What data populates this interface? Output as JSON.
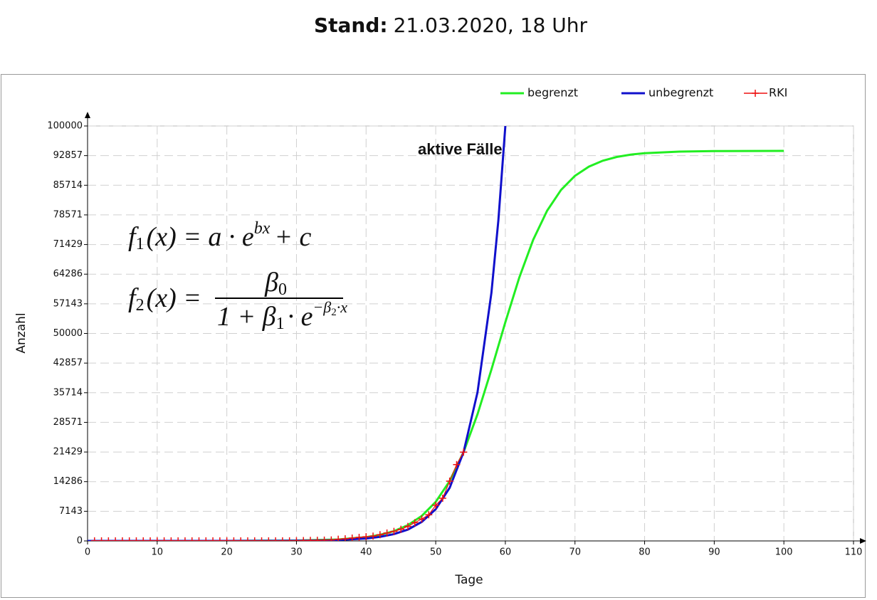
{
  "chart_data": {
    "type": "line",
    "title_bold": "Stand:",
    "title": "21.03.2020, 18 Uhr",
    "annotation": "aktive Fälle",
    "x_label": "Tage",
    "y_label": "Anzahl",
    "xlim": [
      0,
      110
    ],
    "xticks": [
      0,
      10,
      20,
      30,
      40,
      50,
      60,
      70,
      80,
      90,
      100,
      110
    ],
    "ylim": [
      0,
      100000
    ],
    "yticks": [
      0,
      7143,
      14286,
      21429,
      28571,
      35714,
      42857,
      50000,
      57143,
      64286,
      71429,
      78571,
      85714,
      92857,
      100000
    ],
    "grid": true,
    "legend": "top",
    "series": [
      {
        "name": "begrenzt",
        "color": "#22ee22",
        "marker": "none",
        "x": [
          0,
          10,
          20,
          30,
          36,
          40,
          42,
          44,
          46,
          48,
          50,
          52,
          54,
          56,
          58,
          60,
          62,
          64,
          66,
          68,
          70,
          72,
          74,
          76,
          78,
          80,
          85,
          90,
          100
        ],
        "values": [
          0,
          1,
          7,
          79,
          343,
          904,
          1460,
          2356,
          3790,
          6030,
          9400,
          14420,
          21410,
          30520,
          41300,
          52720,
          63470,
          72590,
          79590,
          84600,
          87990,
          90210,
          91640,
          92540,
          93100,
          93440,
          93835,
          93950,
          94000
        ]
      },
      {
        "name": "unbegrenzt",
        "color": "#1010cc",
        "marker": "none",
        "x": [
          0,
          10,
          20,
          30,
          35,
          40,
          42,
          44,
          46,
          48,
          50,
          52,
          54,
          56,
          58,
          59,
          60
        ],
        "values": [
          0,
          0.3,
          3,
          45,
          161,
          586,
          976,
          1640,
          2730,
          4590,
          7650,
          12800,
          21400,
          35800,
          59800,
          77300,
          100000
        ]
      },
      {
        "name": "RKI",
        "color": "#ee1111",
        "marker": "plus",
        "x": [
          1,
          2,
          3,
          4,
          5,
          6,
          7,
          8,
          9,
          10,
          11,
          12,
          13,
          14,
          15,
          16,
          17,
          18,
          19,
          20,
          21,
          22,
          23,
          24,
          25,
          26,
          27,
          28,
          29,
          30,
          31,
          32,
          33,
          34,
          35,
          36,
          37,
          38,
          39,
          40,
          41,
          42,
          43,
          44,
          45,
          46,
          47,
          48,
          49,
          50,
          51,
          52,
          53,
          54
        ],
        "values": [
          16,
          16,
          16,
          16,
          16,
          16,
          16,
          16,
          16,
          16,
          16,
          16,
          16,
          16,
          16,
          16,
          16,
          16,
          16,
          16,
          16,
          16,
          16,
          16,
          16,
          16,
          16,
          18,
          26,
          48,
          79,
          130,
          150,
          188,
          240,
          400,
          520,
          680,
          850,
          1000,
          1150,
          1500,
          1900,
          2300,
          2800,
          3500,
          4400,
          5300,
          6300,
          8600,
          10300,
          14400,
          18400,
          21400
        ]
      }
    ],
    "formula_1": {
      "f": "f",
      "index": "1",
      "body": "(x) = a · e",
      "exponent": "bx",
      "tail": "+ c"
    },
    "formula_2": {
      "f": "f",
      "index": "2",
      "lhs": "(x) =",
      "numerator": "β",
      "numerator_index": "0",
      "denominator": "1 + β",
      "denominator_index": "1",
      "denominator_mid": "· e",
      "exponent": "−β",
      "exponent_index": "2",
      "exponent_tail": "·x"
    }
  }
}
